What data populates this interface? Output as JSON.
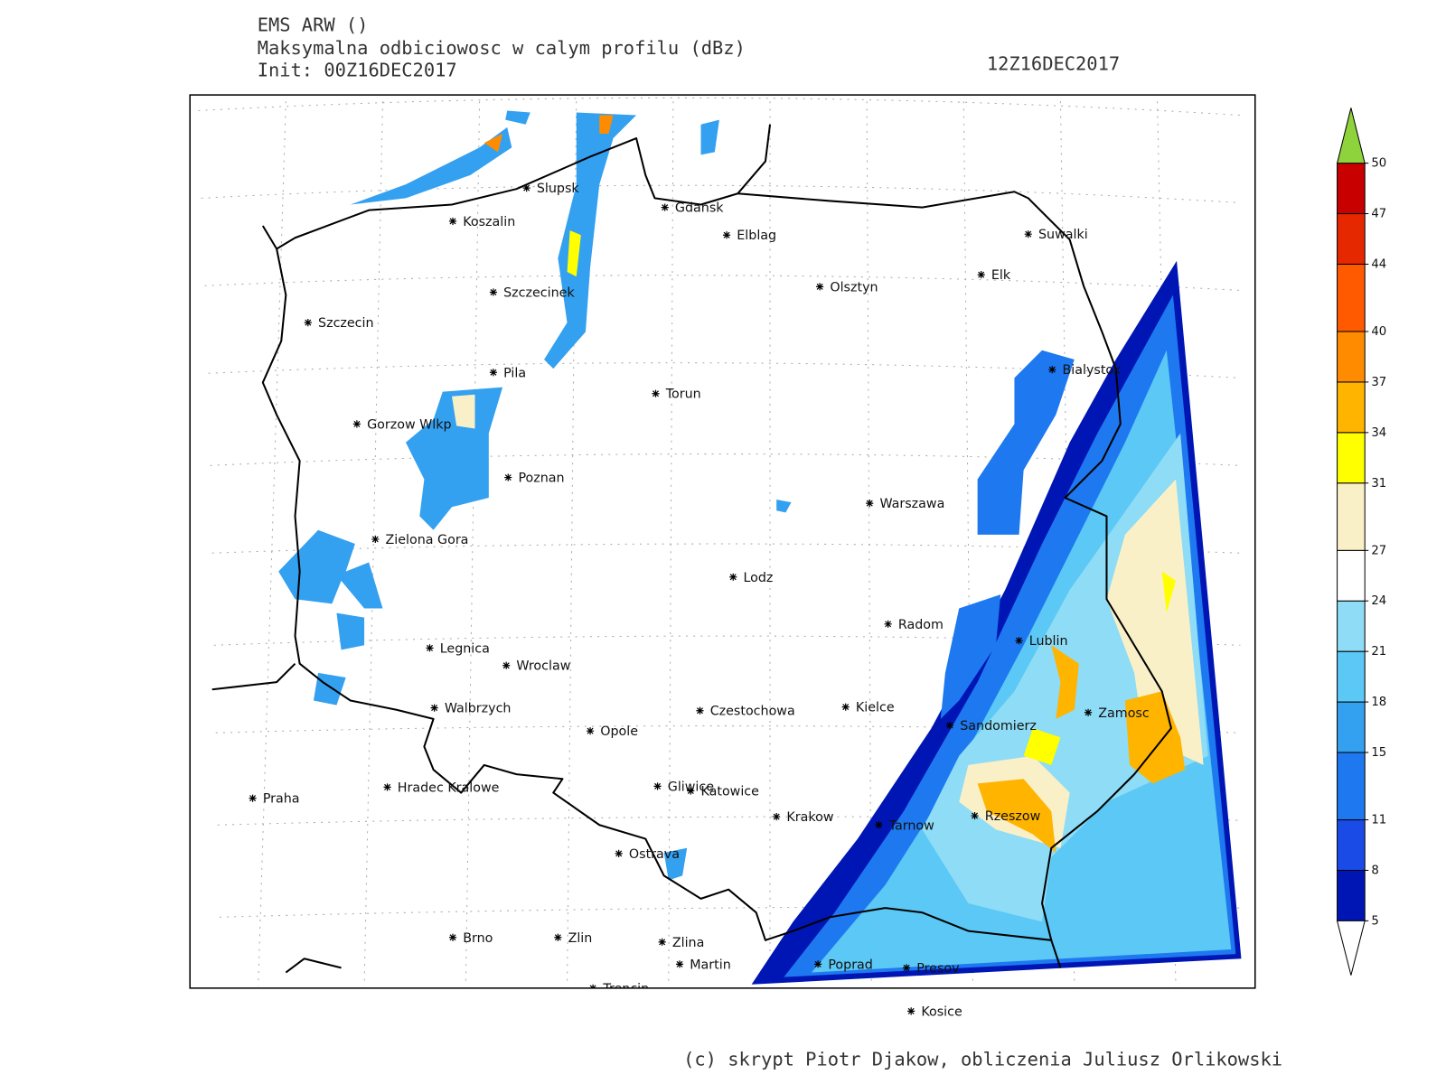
{
  "header": {
    "model": "EMS ARW ()",
    "field": "Maksymalna odbiciowosc w calym profilu (dBz)",
    "init": "Init: 00Z16DEC2017",
    "valid": "12Z16DEC2017"
  },
  "cities": [
    {
      "name": "Slupsk"
    },
    {
      "name": "Koszalin"
    },
    {
      "name": "Gdansk"
    },
    {
      "name": "Elblag"
    },
    {
      "name": "Suwalki"
    },
    {
      "name": "Elk"
    },
    {
      "name": "Szczecinek"
    },
    {
      "name": "Olsztyn"
    },
    {
      "name": "Szczecin"
    },
    {
      "name": "Bialystok"
    },
    {
      "name": "Pila"
    },
    {
      "name": "Torun"
    },
    {
      "name": "Gorzow Wlkp"
    },
    {
      "name": "Poznan"
    },
    {
      "name": "Warszawa"
    },
    {
      "name": "Zielona Gora"
    },
    {
      "name": "Lodz"
    },
    {
      "name": "Radom"
    },
    {
      "name": "Lublin"
    },
    {
      "name": "Legnica"
    },
    {
      "name": "Wroclaw"
    },
    {
      "name": "Walbrzych"
    },
    {
      "name": "Czestochowa"
    },
    {
      "name": "Kielce"
    },
    {
      "name": "Zamosc"
    },
    {
      "name": "Sandomierz"
    },
    {
      "name": "Opole"
    },
    {
      "name": "Praha"
    },
    {
      "name": "Hradec Kralowe"
    },
    {
      "name": "Gliwice"
    },
    {
      "name": "Katowice"
    },
    {
      "name": "Krakow"
    },
    {
      "name": "Rzeszow"
    },
    {
      "name": "Tarnow"
    },
    {
      "name": "Ostrava"
    },
    {
      "name": "Brno"
    },
    {
      "name": "Zlin"
    },
    {
      "name": "Zlina"
    },
    {
      "name": "Martin"
    },
    {
      "name": "Poprad"
    },
    {
      "name": "Presov"
    },
    {
      "name": "Trencin"
    },
    {
      "name": "Kosice"
    }
  ],
  "legend": {
    "levels": [
      5,
      8,
      11,
      15,
      18,
      21,
      24,
      27,
      31,
      34,
      37,
      40,
      44,
      47,
      50
    ],
    "colors": [
      "#0016b4",
      "#1a4be6",
      "#1e78f0",
      "#34a0f0",
      "#5cc8f5",
      "#8edcf5",
      "#ffffff",
      "#faf0c8",
      "#ffff00",
      "#ffb400",
      "#ff8c00",
      "#ff5a00",
      "#e62800",
      "#c80000"
    ],
    "over_color": "#8ed23c",
    "under_color": "#ffffff"
  },
  "footer": "(c) skrypt Piotr Djakow, obliczenia Juliusz Orlikowski"
}
